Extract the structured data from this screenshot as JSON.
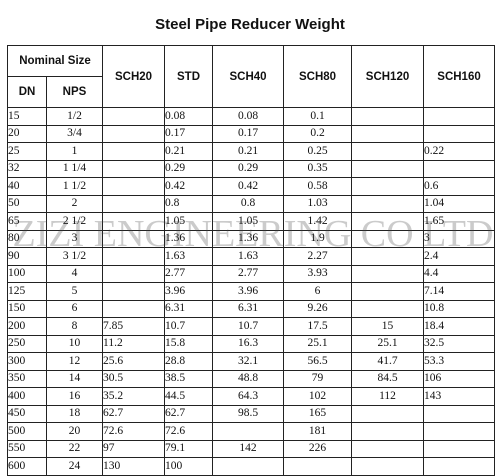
{
  "title": "Steel Pipe Reducer Weight",
  "watermark": "ZIZI ENGINEERING CO LTD",
  "table": {
    "group_header": "Nominal Size",
    "col_dn": "DN",
    "col_nps": "NPS",
    "schedules": [
      "SCH20",
      "STD",
      "SCH40",
      "SCH80",
      "SCH120",
      "SCH160"
    ],
    "rows": [
      {
        "dn": "15",
        "nps": "1/2",
        "v": [
          "",
          "0.08",
          "0.08",
          "0.1",
          "",
          ""
        ]
      },
      {
        "dn": "20",
        "nps": "3/4",
        "v": [
          "",
          "0.17",
          "0.17",
          "0.2",
          "",
          ""
        ]
      },
      {
        "dn": "25",
        "nps": "1",
        "v": [
          "",
          "0.21",
          "0.21",
          "0.25",
          "",
          "0.22"
        ]
      },
      {
        "dn": "32",
        "nps": "1 1/4",
        "v": [
          "",
          "0.29",
          "0.29",
          "0.35",
          "",
          ""
        ]
      },
      {
        "dn": "40",
        "nps": "1 1/2",
        "v": [
          "",
          "0.42",
          "0.42",
          "0.58",
          "",
          "0.6"
        ]
      },
      {
        "dn": "50",
        "nps": "2",
        "v": [
          "",
          "0.8",
          "0.8",
          "1.03",
          "",
          "1.04"
        ]
      },
      {
        "dn": "65",
        "nps": "2 1/2",
        "v": [
          "",
          "1.05",
          "1.05",
          "1.42",
          "",
          "1.65"
        ]
      },
      {
        "dn": "80",
        "nps": "3",
        "v": [
          "",
          "1.36",
          "1.36",
          "1.9",
          "",
          "3"
        ]
      },
      {
        "dn": "90",
        "nps": "3 1/2",
        "v": [
          "",
          "1.63",
          "1.63",
          "2.27",
          "",
          "2.4"
        ]
      },
      {
        "dn": "100",
        "nps": "4",
        "v": [
          "",
          "2.77",
          "2.77",
          "3.93",
          "",
          "4.4"
        ]
      },
      {
        "dn": "125",
        "nps": "5",
        "v": [
          "",
          "3.96",
          "3.96",
          "6",
          "",
          "7.14"
        ]
      },
      {
        "dn": "150",
        "nps": "6",
        "v": [
          "",
          "6.31",
          "6.31",
          "9.26",
          "",
          "10.8"
        ]
      },
      {
        "dn": "200",
        "nps": "8",
        "v": [
          "7.85",
          "10.7",
          "10.7",
          "17.5",
          "15",
          "18.4"
        ]
      },
      {
        "dn": "250",
        "nps": "10",
        "v": [
          "11.2",
          "15.8",
          "16.3",
          "25.1",
          "25.1",
          "32.5"
        ]
      },
      {
        "dn": "300",
        "nps": "12",
        "v": [
          "25.6",
          "28.8",
          "32.1",
          "56.5",
          "41.7",
          "53.3"
        ]
      },
      {
        "dn": "350",
        "nps": "14",
        "v": [
          "30.5",
          "38.5",
          "48.8",
          "79",
          "84.5",
          "106"
        ]
      },
      {
        "dn": "400",
        "nps": "16",
        "v": [
          "35.2",
          "44.5",
          "64.3",
          "102",
          "112",
          "143"
        ]
      },
      {
        "dn": "450",
        "nps": "18",
        "v": [
          "62.7",
          "62.7",
          "98.5",
          "165",
          "",
          ""
        ]
      },
      {
        "dn": "500",
        "nps": "20",
        "v": [
          "72.6",
          "72.6",
          "",
          "181",
          "",
          ""
        ]
      },
      {
        "dn": "550",
        "nps": "22",
        "v": [
          "97",
          "79.1",
          "142",
          "226",
          "",
          ""
        ]
      },
      {
        "dn": "600",
        "nps": "24",
        "v": [
          "130",
          "100",
          "",
          "",
          "",
          ""
        ]
      }
    ]
  }
}
